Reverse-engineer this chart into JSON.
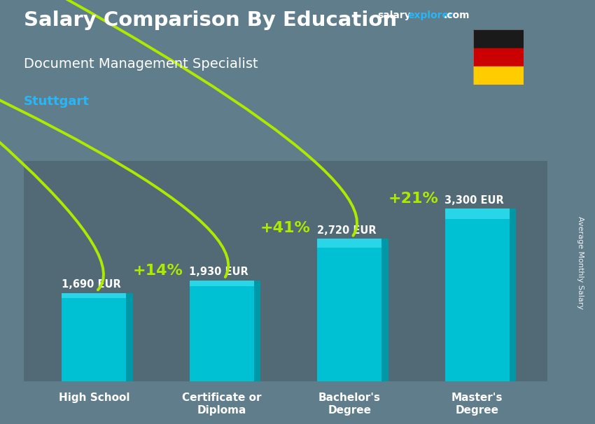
{
  "title_main": "Salary Comparison By Education",
  "title_sub": "Document Management Specialist",
  "title_city": "Stuttgart",
  "categories": [
    "High School",
    "Certificate or\nDiploma",
    "Bachelor's\nDegree",
    "Master's\nDegree"
  ],
  "values": [
    1690,
    1930,
    2720,
    3300
  ],
  "value_labels": [
    "1,690 EUR",
    "1,930 EUR",
    "2,720 EUR",
    "3,300 EUR"
  ],
  "pct_labels": [
    "+14%",
    "+41%",
    "+21%"
  ],
  "pct_from": [
    0,
    1,
    2
  ],
  "pct_to": [
    1,
    2,
    3
  ],
  "bar_color_main": "#00c0d4",
  "bar_color_light": "#29d6e8",
  "bar_color_dark": "#0097a7",
  "bg_color": "#607d8b",
  "text_color_white": "#ffffff",
  "text_color_cyan": "#29b6f6",
  "text_color_green": "#aeea00",
  "ylabel_text": "Average Monthly Salary",
  "ylim_max": 4200,
  "bar_width": 0.55,
  "flag_colors_top_to_bottom": [
    "#1a1a1a",
    "#cc0000",
    "#ffcc00"
  ],
  "brand_salary_color": "#ffffff",
  "brand_explorer_color": "#29b6f6",
  "brand_com_color": "#ffffff"
}
